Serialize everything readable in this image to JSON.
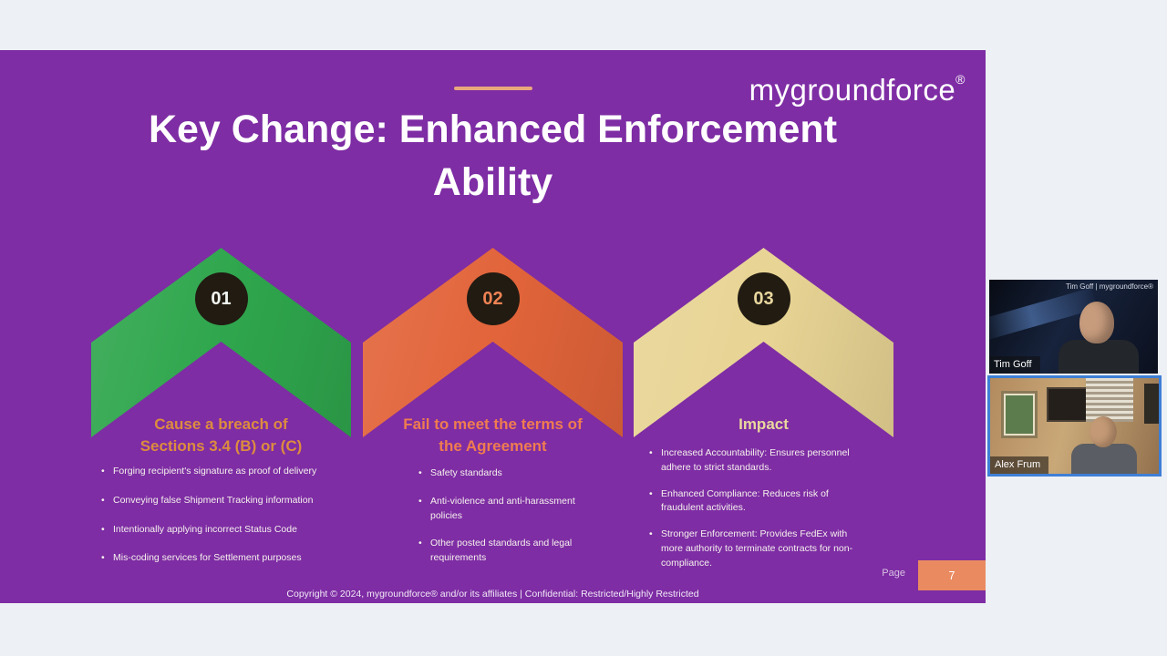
{
  "colors": {
    "page-bg": "#edf0f5",
    "slide-bg": "#7e2da4",
    "accent-line": "#e9a87c",
    "page-box": "#ea8a60",
    "active-border": "#3e7fd6"
  },
  "slide": {
    "logo": "mygroundforce",
    "logo_mark": "®",
    "title_line1": "Key Change: Enhanced Enforcement",
    "title_line2": "Ability",
    "footer": "Copyright © 2024, mygroundforce® and/or its affiliates  |  Confidential: Restricted/Highly Restricted",
    "page_label": "Page",
    "page_number": "7",
    "columns": [
      {
        "number": "01",
        "chevron_color": "#2fa64d",
        "number_color": "#f2f7f2",
        "heading": "Cause a breach of Sections 3.4 (B) or (C)",
        "heading_color": "#dd8c3e",
        "bullets": [
          "Forging recipient's signature as proof of delivery",
          "Conveying false Shipment Tracking information",
          "Intentionally applying incorrect Status Code",
          "Mis-coding services for Settlement purposes"
        ]
      },
      {
        "number": "02",
        "chevron_color": "#e2643a",
        "number_color": "#ef8354",
        "heading": "Fail to meet the terms of the Agreement",
        "heading_color": "#ef7c50",
        "bullets": [
          "Safety standards",
          "Anti-violence and anti-harassment policies",
          "Other posted standards and legal requirements"
        ]
      },
      {
        "number": "03",
        "chevron_color": "#e8d494",
        "number_color": "#e9d79e",
        "heading": "Impact",
        "heading_color": "#e9d79e",
        "bullets": [
          "Increased Accountability: Ensures personnel adhere to strict standards.",
          "Enhanced Compliance: Reduces risk of fraudulent activities.",
          "Stronger Enforcement: Provides FedEx with more authority to terminate contracts for non-compliance."
        ]
      }
    ]
  },
  "participants": [
    {
      "name": "Tim Goff",
      "overlay": "Tim Goff | mygroundforce®"
    },
    {
      "name": "Alex Frum",
      "active": true
    }
  ]
}
